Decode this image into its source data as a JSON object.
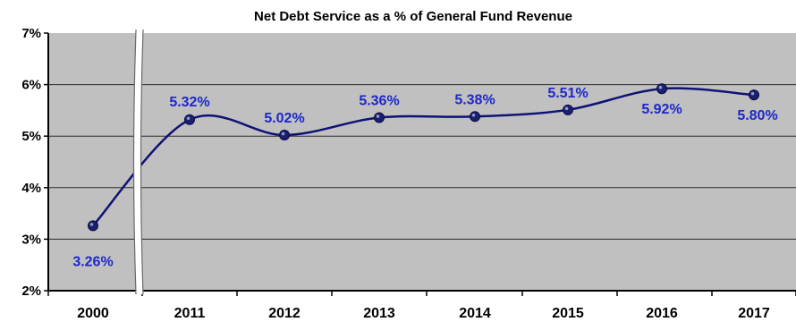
{
  "chart_data": {
    "type": "line",
    "title": "Net Debt Service as a % of General Fund Revenue",
    "xlabel": "",
    "ylabel": "",
    "categories": [
      "2000",
      "2011",
      "2012",
      "2013",
      "2014",
      "2015",
      "2016",
      "2017"
    ],
    "series": [
      {
        "values": [
          3.26,
          5.32,
          5.02,
          5.36,
          5.38,
          5.51,
          5.92,
          5.8
        ],
        "data_labels": [
          "3.26%",
          "5.32%",
          "5.02%",
          "5.36%",
          "5.38%",
          "5.51%",
          "5.92%",
          "5.80%"
        ]
      }
    ],
    "ylim": [
      2,
      7
    ],
    "yticks": [
      2,
      3,
      4,
      5,
      6,
      7
    ],
    "ytick_labels": [
      "2%",
      "3%",
      "4%",
      "5%",
      "6%",
      "7%"
    ],
    "axis_break": "between 2000 and 2011",
    "grid": true,
    "legend": "none",
    "colors": {
      "line": "#0d1275",
      "marker": "#1a1f6e",
      "label": "#1d27c9",
      "plot_background": "#c0c0c0",
      "gridline": "#2a2a2a"
    }
  }
}
